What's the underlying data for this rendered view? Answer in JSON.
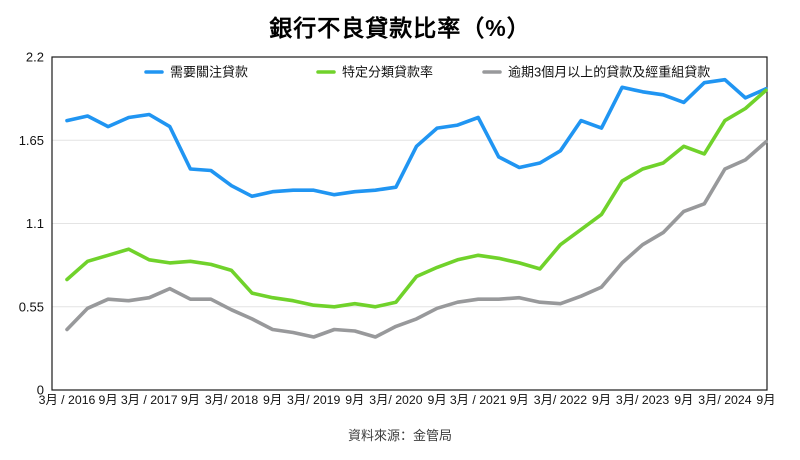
{
  "title": "銀行不良貸款比率（%）",
  "source": "資料來源：金管局",
  "colors": {
    "blue": "#2095F2",
    "green": "#70D22B",
    "gray": "#98999B",
    "grid": "#E4E4E4",
    "axis": "#1A1A1A",
    "text": "#111111"
  },
  "chart_data": {
    "type": "line",
    "title": "銀行不良貸款比率（%）",
    "xlabel": "",
    "ylabel": "",
    "ylim": [
      0,
      2.2
    ],
    "y_ticks": [
      0,
      0.55,
      1.1,
      1.65,
      2.2
    ],
    "y_tick_labels": [
      "0",
      "0.55",
      "1.1",
      "1.65",
      "2.2"
    ],
    "grid": "horizontal",
    "legend_position": "top",
    "label_every": 2,
    "x_tick_labels": [
      "3月 / 2016",
      "9月",
      "3月 / 2017",
      "9月",
      "3月/ 2018",
      "9月",
      "3月/ 2019",
      "9月",
      "3月/ 2020",
      "9月",
      "3月 / 2021",
      "9月",
      "3月/ 2022",
      "9月",
      "3月/ 2023",
      "9月",
      "3月/ 2024",
      "9月"
    ],
    "series": [
      {
        "name": "需要關注貸款",
        "color": "#2095F2",
        "values": [
          1.78,
          1.81,
          1.74,
          1.8,
          1.82,
          1.74,
          1.46,
          1.45,
          1.35,
          1.28,
          1.31,
          1.32,
          1.32,
          1.29,
          1.31,
          1.32,
          1.34,
          1.61,
          1.73,
          1.75,
          1.8,
          1.54,
          1.47,
          1.5,
          1.58,
          1.78,
          1.73,
          2.0,
          1.97,
          1.95,
          1.9,
          2.03,
          2.05,
          1.93,
          1.99
        ]
      },
      {
        "name": "特定分類貸款率",
        "color": "#70D22B",
        "values": [
          0.73,
          0.85,
          0.89,
          0.93,
          0.86,
          0.84,
          0.85,
          0.83,
          0.79,
          0.64,
          0.61,
          0.59,
          0.56,
          0.55,
          0.57,
          0.55,
          0.58,
          0.75,
          0.81,
          0.86,
          0.89,
          0.87,
          0.84,
          0.8,
          0.96,
          1.06,
          1.16,
          1.38,
          1.46,
          1.5,
          1.61,
          1.56,
          1.78,
          1.86,
          1.98
        ]
      },
      {
        "name": "逾期3個月以上的貸款及經重組貸款",
        "color": "#98999B",
        "values": [
          0.4,
          0.54,
          0.6,
          0.59,
          0.61,
          0.67,
          0.6,
          0.6,
          0.53,
          0.47,
          0.4,
          0.38,
          0.35,
          0.4,
          0.39,
          0.35,
          0.42,
          0.47,
          0.54,
          0.58,
          0.6,
          0.6,
          0.61,
          0.58,
          0.57,
          0.62,
          0.68,
          0.84,
          0.96,
          1.04,
          1.18,
          1.23,
          1.46,
          1.52,
          1.64
        ]
      }
    ]
  }
}
